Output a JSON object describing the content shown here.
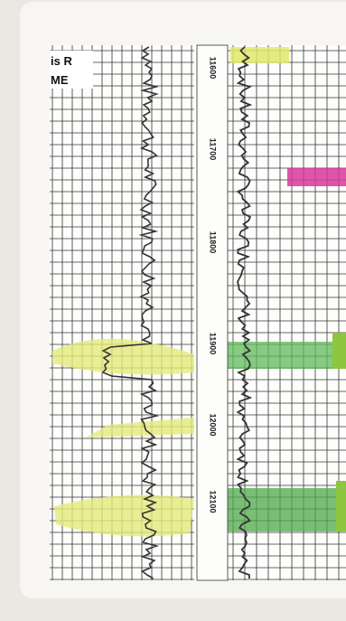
{
  "label_box": {
    "lines": [
      "is R",
      "ME"
    ]
  },
  "depth_labels": [
    "11600",
    "11700",
    "11800",
    "11900",
    "12000",
    "12100"
  ]
}
